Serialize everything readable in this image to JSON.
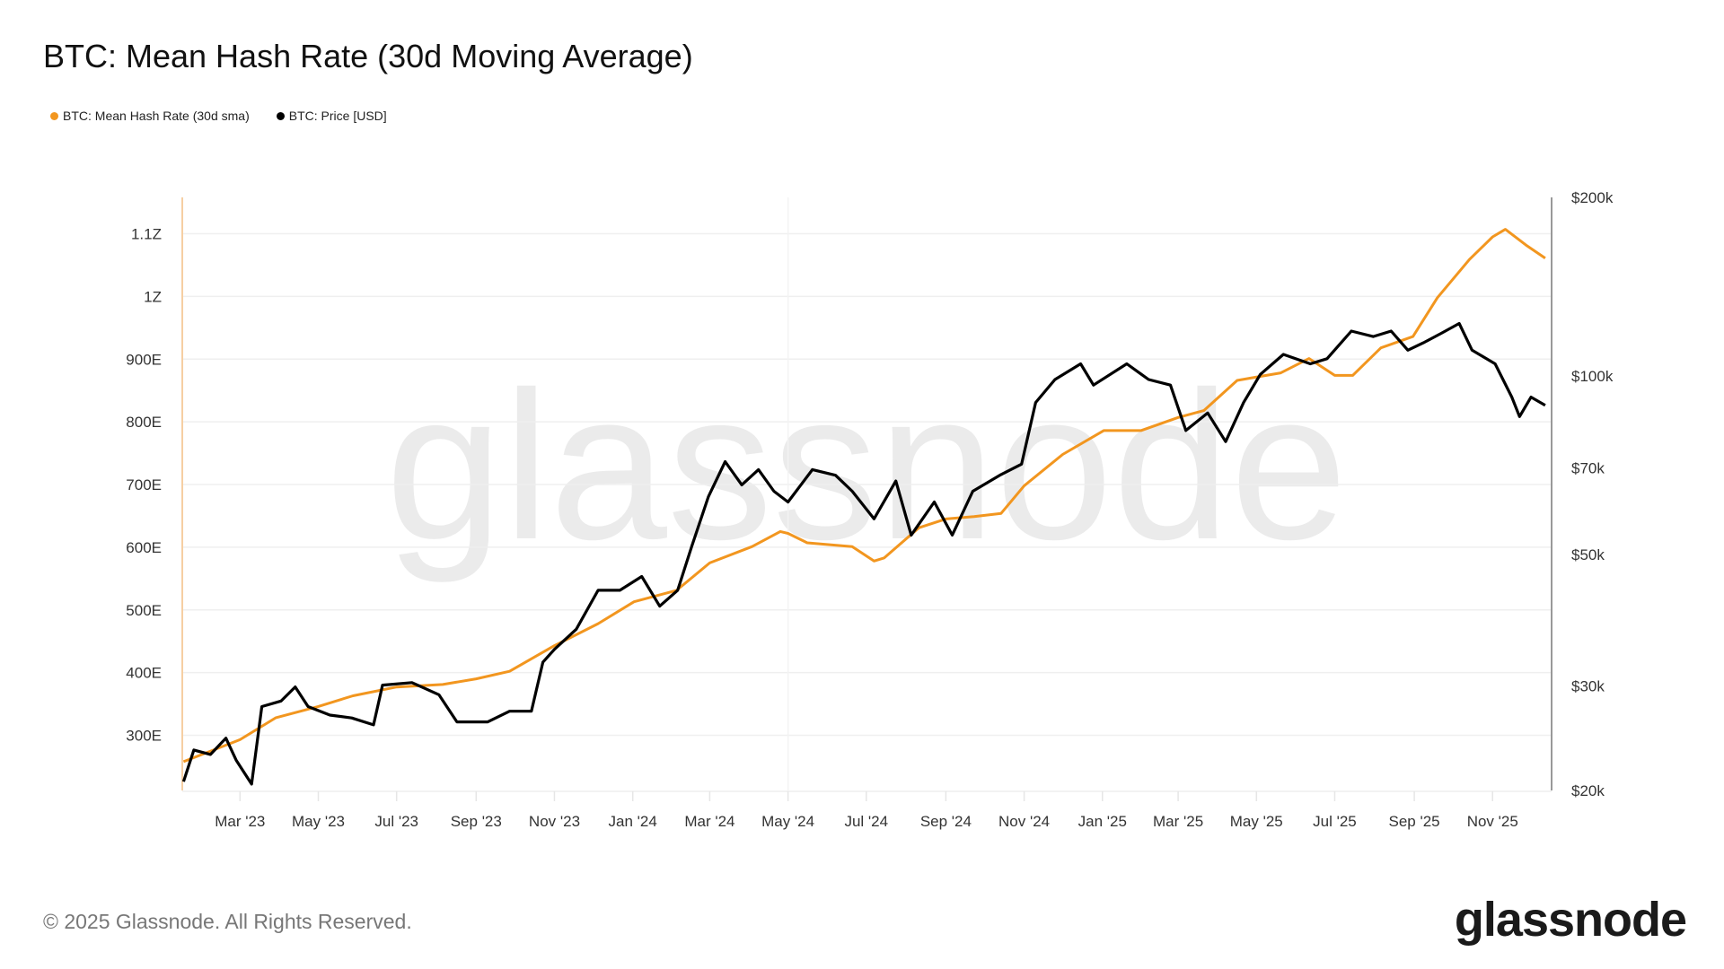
{
  "title": "BTC: Mean Hash Rate (30d Moving Average)",
  "legend": [
    {
      "label": "BTC: Mean Hash Rate (30d sma)",
      "color": "#f2961f"
    },
    {
      "label": "BTC: Price [USD]",
      "color": "#000000"
    }
  ],
  "footer": {
    "copyright": "© 2025 Glassnode. All Rights Reserved.",
    "logo": "glassnode",
    "watermark": "glassnode"
  },
  "chart_data": {
    "type": "line",
    "title": "BTC: Mean Hash Rate (30d Moving Average)",
    "x_range": [
      "2023-01-15",
      "2025-12-17"
    ],
    "x_ticks": [
      {
        "date": "2023-03-01",
        "label": "Mar '23"
      },
      {
        "date": "2023-05-01",
        "label": "May '23"
      },
      {
        "date": "2023-07-01",
        "label": "Jul '23"
      },
      {
        "date": "2023-09-01",
        "label": "Sep '23"
      },
      {
        "date": "2023-11-01",
        "label": "Nov '23"
      },
      {
        "date": "2024-01-01",
        "label": "Jan '24"
      },
      {
        "date": "2024-03-01",
        "label": "Mar '24"
      },
      {
        "date": "2024-05-01",
        "label": "May '24"
      },
      {
        "date": "2024-07-01",
        "label": "Jul '24"
      },
      {
        "date": "2024-09-01",
        "label": "Sep '24"
      },
      {
        "date": "2024-11-01",
        "label": "Nov '24"
      },
      {
        "date": "2025-01-01",
        "label": "Jan '25"
      },
      {
        "date": "2025-03-01",
        "label": "Mar '25"
      },
      {
        "date": "2025-05-01",
        "label": "May '25"
      },
      {
        "date": "2025-07-01",
        "label": "Jul '25"
      },
      {
        "date": "2025-09-01",
        "label": "Sep '25"
      },
      {
        "date": "2025-11-01",
        "label": "Nov '25"
      }
    ],
    "y_left": {
      "unit": "EH/s (E)",
      "range": [
        212,
        1158
      ],
      "ticks": [
        {
          "value": 300,
          "label": "300E"
        },
        {
          "value": 400,
          "label": "400E"
        },
        {
          "value": 500,
          "label": "500E"
        },
        {
          "value": 600,
          "label": "600E"
        },
        {
          "value": 700,
          "label": "700E"
        },
        {
          "value": 800,
          "label": "800E"
        },
        {
          "value": 900,
          "label": "900E"
        },
        {
          "value": 1000,
          "label": "1Z"
        },
        {
          "value": 1100,
          "label": "1.1Z"
        }
      ]
    },
    "y_right": {
      "scale": "log",
      "range": [
        20000,
        200000
      ],
      "ticks": [
        {
          "value": 20000,
          "label": "$20k"
        },
        {
          "value": 30000,
          "label": "$30k"
        },
        {
          "value": 50000,
          "label": "$50k"
        },
        {
          "value": 70000,
          "label": "$70k"
        },
        {
          "value": 100000,
          "label": "$100k"
        },
        {
          "value": 200000,
          "label": "$200k"
        }
      ]
    },
    "grid": true,
    "legend_position": "top-left",
    "series": [
      {
        "name": "BTC: Mean Hash Rate (30d sma)",
        "axis": "left",
        "color": "#f2961f",
        "points": [
          [
            "2023-01-16",
            258
          ],
          [
            "2023-03-01",
            293
          ],
          [
            "2023-03-29",
            328
          ],
          [
            "2023-05-01",
            346
          ],
          [
            "2023-05-28",
            363
          ],
          [
            "2023-07-01",
            377
          ],
          [
            "2023-08-06",
            381
          ],
          [
            "2023-09-01",
            390
          ],
          [
            "2023-09-27",
            402
          ],
          [
            "2023-11-01",
            443
          ],
          [
            "2023-12-05",
            478
          ],
          [
            "2024-01-02",
            513
          ],
          [
            "2024-02-04",
            531
          ],
          [
            "2024-03-01",
            575
          ],
          [
            "2024-04-03",
            601
          ],
          [
            "2024-04-25",
            625
          ],
          [
            "2024-05-01",
            622
          ],
          [
            "2024-05-16",
            607
          ],
          [
            "2024-06-20",
            601
          ],
          [
            "2024-07-07",
            578
          ],
          [
            "2024-07-15",
            583
          ],
          [
            "2024-08-11",
            631
          ],
          [
            "2024-09-01",
            645
          ],
          [
            "2024-09-23",
            649
          ],
          [
            "2024-10-14",
            654
          ],
          [
            "2024-11-01",
            698
          ],
          [
            "2024-12-01",
            748
          ],
          [
            "2025-01-02",
            786
          ],
          [
            "2025-01-31",
            786
          ],
          [
            "2025-03-01",
            807
          ],
          [
            "2025-03-21",
            818
          ],
          [
            "2025-04-16",
            866
          ],
          [
            "2025-04-30",
            871
          ],
          [
            "2025-05-20",
            878
          ],
          [
            "2025-06-11",
            901
          ],
          [
            "2025-07-01",
            874
          ],
          [
            "2025-07-15",
            874
          ],
          [
            "2025-08-06",
            918
          ],
          [
            "2025-08-31",
            936
          ],
          [
            "2025-09-19",
            998
          ],
          [
            "2025-10-14",
            1059
          ],
          [
            "2025-11-01",
            1095
          ],
          [
            "2025-11-11",
            1107
          ],
          [
            "2025-11-27",
            1082
          ],
          [
            "2025-12-12",
            1061
          ]
        ]
      },
      {
        "name": "BTC: Price [USD]",
        "axis": "right",
        "color": "#000000",
        "points": [
          [
            "2023-01-16",
            20700
          ],
          [
            "2023-01-24",
            23400
          ],
          [
            "2023-02-06",
            23000
          ],
          [
            "2023-02-18",
            24500
          ],
          [
            "2023-02-26",
            22500
          ],
          [
            "2023-03-10",
            20500
          ],
          [
            "2023-03-18",
            27700
          ],
          [
            "2023-04-02",
            28300
          ],
          [
            "2023-04-13",
            29900
          ],
          [
            "2023-04-23",
            27700
          ],
          [
            "2023-05-10",
            26800
          ],
          [
            "2023-05-27",
            26500
          ],
          [
            "2023-06-13",
            25800
          ],
          [
            "2023-06-20",
            30100
          ],
          [
            "2023-07-13",
            30400
          ],
          [
            "2023-08-03",
            29000
          ],
          [
            "2023-08-17",
            26100
          ],
          [
            "2023-09-10",
            26100
          ],
          [
            "2023-09-27",
            27200
          ],
          [
            "2023-10-14",
            27200
          ],
          [
            "2023-10-23",
            32900
          ],
          [
            "2023-11-01",
            34600
          ],
          [
            "2023-11-18",
            37400
          ],
          [
            "2023-12-05",
            43500
          ],
          [
            "2023-12-22",
            43500
          ],
          [
            "2024-01-08",
            45900
          ],
          [
            "2024-01-22",
            40900
          ],
          [
            "2024-02-05",
            43500
          ],
          [
            "2024-02-16",
            51600
          ],
          [
            "2024-02-29",
            62600
          ],
          [
            "2024-03-13",
            71700
          ],
          [
            "2024-03-26",
            65500
          ],
          [
            "2024-04-08",
            69500
          ],
          [
            "2024-04-20",
            63900
          ],
          [
            "2024-05-01",
            61300
          ],
          [
            "2024-05-20",
            69500
          ],
          [
            "2024-06-07",
            68000
          ],
          [
            "2024-06-20",
            63900
          ],
          [
            "2024-07-07",
            57400
          ],
          [
            "2024-07-24",
            66500
          ],
          [
            "2024-08-05",
            53900
          ],
          [
            "2024-08-23",
            61300
          ],
          [
            "2024-09-06",
            53900
          ],
          [
            "2024-09-22",
            63900
          ],
          [
            "2024-10-13",
            68000
          ],
          [
            "2024-10-30",
            71000
          ],
          [
            "2024-11-10",
            90200
          ],
          [
            "2024-11-25",
            98600
          ],
          [
            "2024-12-15",
            104800
          ],
          [
            "2024-12-25",
            96500
          ],
          [
            "2025-01-20",
            104800
          ],
          [
            "2025-02-06",
            98600
          ],
          [
            "2025-02-23",
            96500
          ],
          [
            "2025-03-07",
            80900
          ],
          [
            "2025-03-24",
            86600
          ],
          [
            "2025-04-07",
            77500
          ],
          [
            "2025-04-21",
            90200
          ],
          [
            "2025-05-04",
            100600
          ],
          [
            "2025-05-22",
            108700
          ],
          [
            "2025-06-12",
            104800
          ],
          [
            "2025-06-25",
            106900
          ],
          [
            "2025-07-14",
            119000
          ],
          [
            "2025-07-31",
            116500
          ],
          [
            "2025-08-14",
            119000
          ],
          [
            "2025-08-27",
            110500
          ],
          [
            "2025-09-09",
            114000
          ],
          [
            "2025-09-22",
            118000
          ],
          [
            "2025-10-06",
            122600
          ],
          [
            "2025-10-16",
            110500
          ],
          [
            "2025-11-03",
            104800
          ],
          [
            "2025-11-16",
            92100
          ],
          [
            "2025-11-22",
            85400
          ],
          [
            "2025-12-01",
            92100
          ],
          [
            "2025-12-12",
            89200
          ]
        ]
      }
    ]
  }
}
